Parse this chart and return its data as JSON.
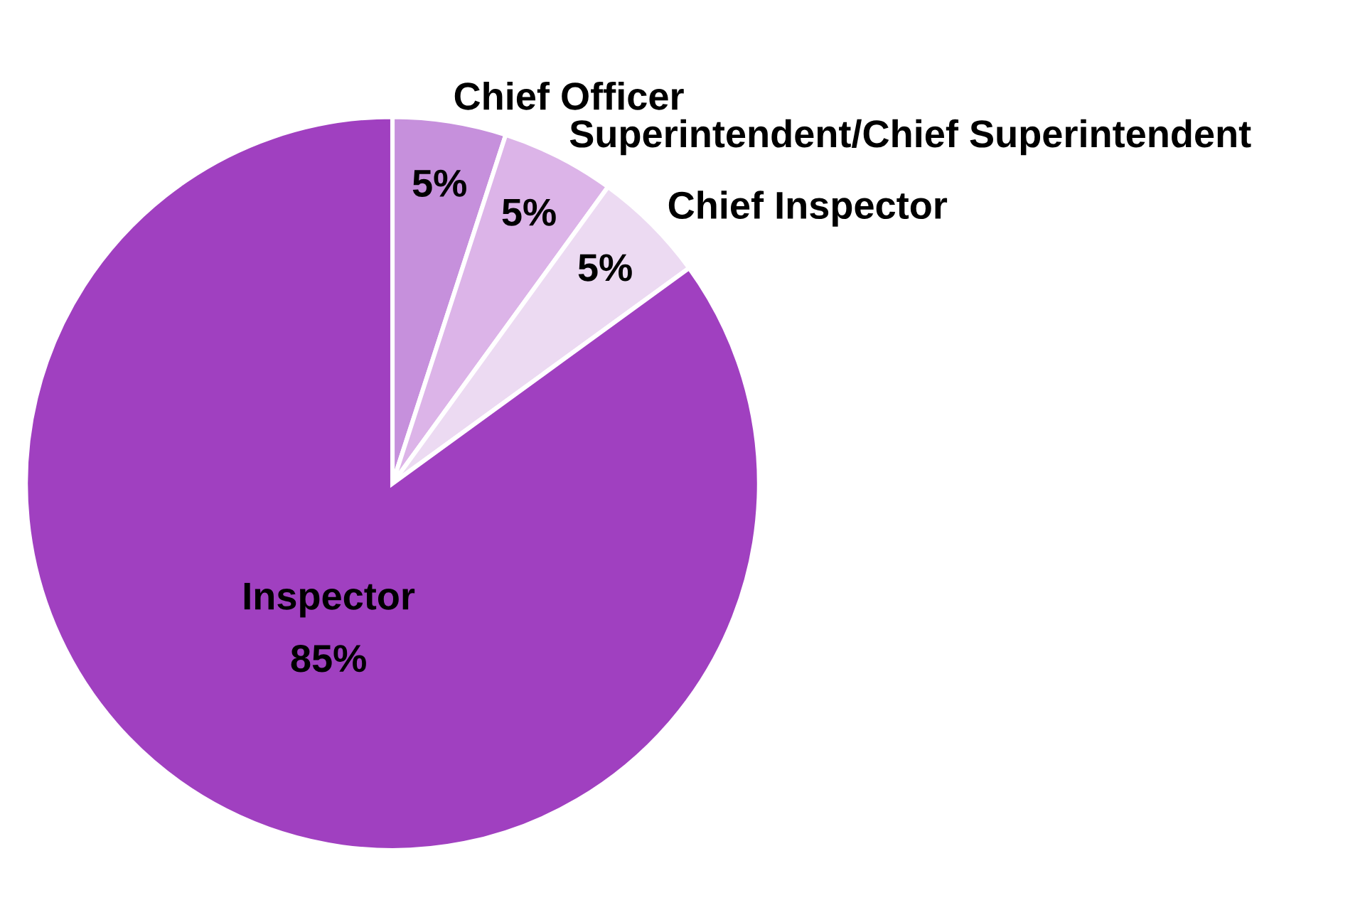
{
  "chart_data": {
    "type": "pie",
    "categories": [
      "Chief Officer",
      "Superintendent/Chief Superintendent",
      "Chief Inspector",
      "Inspector"
    ],
    "values": [
      5,
      5,
      5,
      85
    ],
    "colors": [
      "#c690dc",
      "#dcb4e8",
      "#ecdaf2",
      "#a040c0"
    ],
    "value_labels": [
      "5%",
      "5%",
      "5%",
      "85%"
    ]
  }
}
